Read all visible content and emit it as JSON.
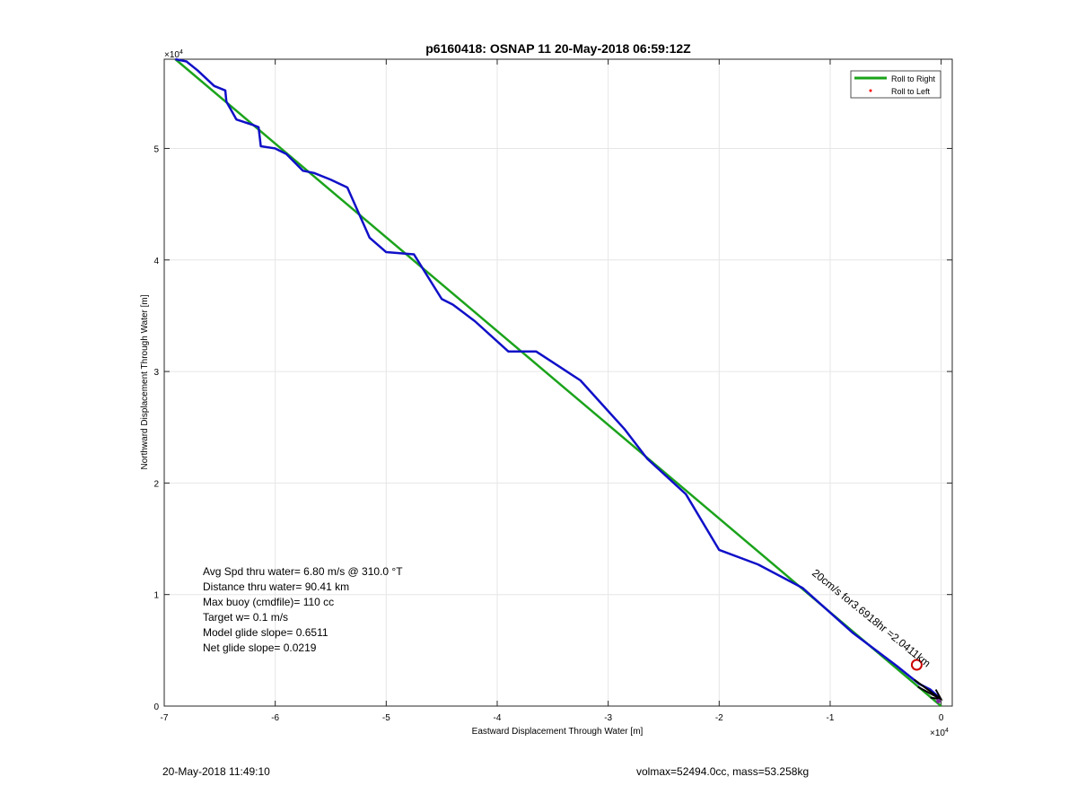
{
  "chart_data": {
    "type": "line",
    "title": "p6160418: OSNAP 11 20-May-2018 06:59:12Z",
    "xlabel": "Eastward Displacement Through Water [m]",
    "ylabel": "Northward Displacement Through Water [m]",
    "x_exponent": "×10",
    "x_exponent_power": "4",
    "y_exponent": "×10",
    "y_exponent_power": "4",
    "xlim": [
      -70000,
      1000
    ],
    "ylim": [
      0,
      58000
    ],
    "xticks": [
      -70000,
      -60000,
      -50000,
      -40000,
      -30000,
      -20000,
      -10000,
      0
    ],
    "xtick_labels": [
      "-7",
      "-6",
      "-5",
      "-4",
      "-3",
      "-2",
      "-1",
      "0"
    ],
    "yticks": [
      0,
      10000,
      20000,
      30000,
      40000,
      50000
    ],
    "ytick_labels": [
      "0",
      "1",
      "2",
      "3",
      "4",
      "5"
    ],
    "grid": true,
    "legend_position": "top-right",
    "series": [
      {
        "name": "Roll to Right",
        "color": "#1ba31b",
        "x": [
          -69000,
          0
        ],
        "y": [
          58000,
          0
        ]
      },
      {
        "name": "Roll to Left",
        "color": "#ff0000",
        "x": [],
        "y": []
      }
    ],
    "track": {
      "color": "#1010c8",
      "x": [
        -69000,
        -68000,
        -67000,
        -65500,
        -64500,
        -64400,
        -63500,
        -62000,
        -61500,
        -61300,
        -60000,
        -59000,
        -57500,
        -56500,
        -55000,
        -53500,
        -51500,
        -50000,
        -47500,
        -45000,
        -44000,
        -42000,
        -39000,
        -36500,
        -34500,
        -32500,
        -30500,
        -28500,
        -26500,
        -23000,
        -20000,
        -16500,
        -12500,
        -8000,
        -4000,
        -2000,
        -1000,
        0
      ],
      "y": [
        58000,
        57800,
        57000,
        55600,
        55200,
        54200,
        52600,
        52100,
        51900,
        50200,
        50000,
        49500,
        48000,
        47800,
        47200,
        46500,
        42000,
        40700,
        40500,
        36500,
        36000,
        34500,
        31800,
        31800,
        30500,
        29200,
        27000,
        24800,
        22200,
        19000,
        14000,
        12700,
        10600,
        6600,
        3600,
        2000,
        1500,
        600
      ]
    },
    "markers": [
      {
        "type": "open-circle",
        "color": "#cc0000",
        "x": -2200,
        "y": 3700
      }
    ],
    "annotations": [
      {
        "text": "Avg Spd thru water=  6.80 m/s @ 310.0 °T"
      },
      {
        "text": "Distance thru water= 90.41 km"
      },
      {
        "text": "Max buoy (cmdfile)= 110 cc"
      },
      {
        "text": "Target w= 0.1 m/s"
      },
      {
        "text": "Model glide slope= 0.6511"
      },
      {
        "text": "Net glide slope= 0.0219"
      }
    ],
    "rotated_label": "20cm/s for3.6918hr =2.0411km"
  },
  "footer": {
    "left": "20-May-2018 11:49:10",
    "right": "volmax=52494.0cc, mass=53.258kg"
  }
}
